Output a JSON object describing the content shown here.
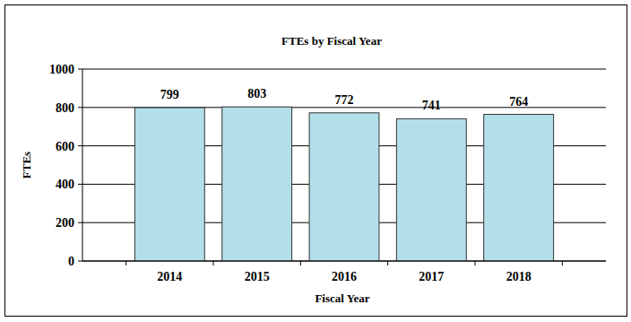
{
  "chart_data": {
    "type": "bar",
    "title": "FTEs by Fiscal Year",
    "x_label": "Fiscal Year",
    "y_label": "FTEs",
    "categories": [
      "2014",
      "2015",
      "2016",
      "2017",
      "2018"
    ],
    "values": [
      799,
      803,
      772,
      741,
      764
    ],
    "color": "#b3dfea",
    "ylim": [
      0,
      1000
    ],
    "yticks": [
      0,
      200,
      400,
      600,
      800,
      1000
    ],
    "grid": true,
    "data_labels": true
  }
}
